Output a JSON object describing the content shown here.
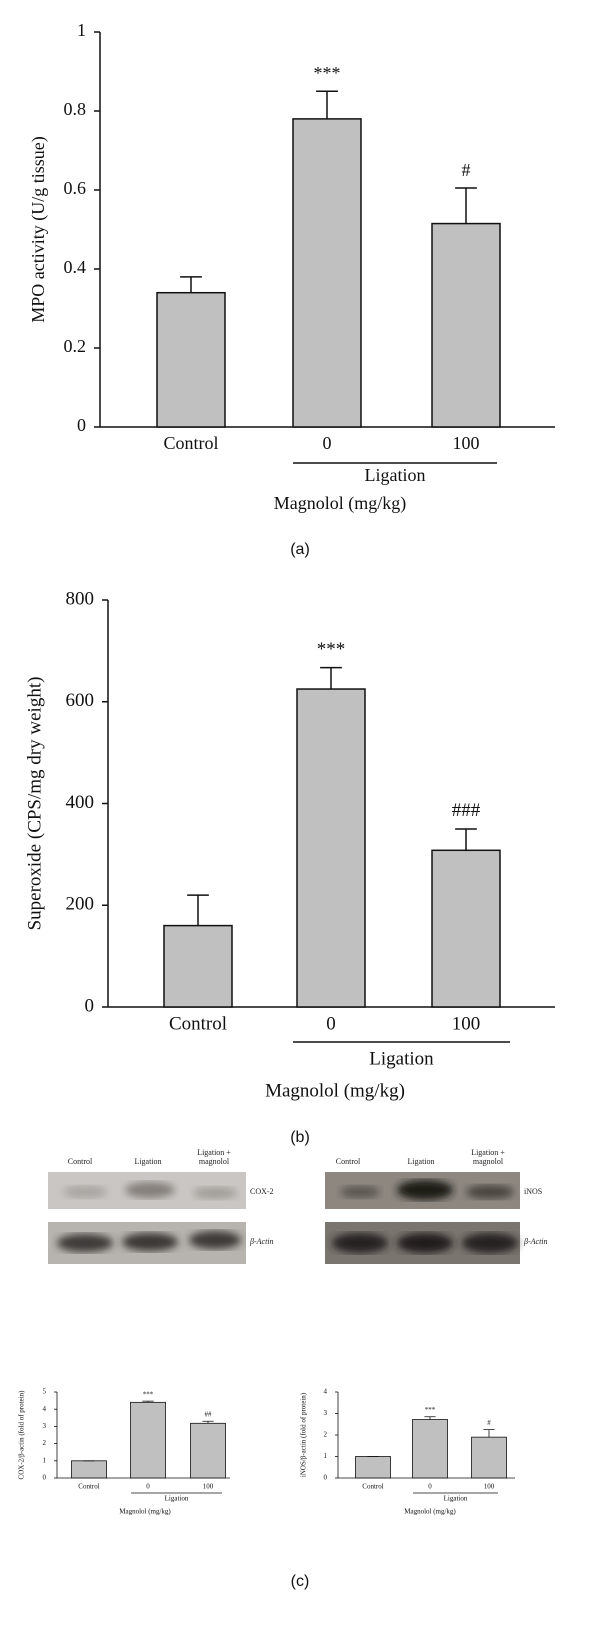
{
  "chart_data": [
    {
      "type": "bar",
      "panel_label": "(a)",
      "ylabel": "MPO activity (U/g tissue)",
      "xlabel": "Magnolol (mg/kg)",
      "group_label": "Ligation",
      "categories": [
        "Control",
        "0",
        "100"
      ],
      "values": [
        0.34,
        0.78,
        0.515
      ],
      "errors": [
        0.04,
        0.07,
        0.09
      ],
      "annotations": [
        null,
        "***",
        "#"
      ],
      "color": "#c0c0c0",
      "ylim": [
        0,
        1
      ],
      "yticks": [
        0,
        0.2,
        0.4,
        0.6,
        0.8,
        1
      ]
    },
    {
      "type": "bar",
      "panel_label": "(b)",
      "ylabel": "Superoxide (CPS/mg dry weight)",
      "xlabel": "Magnolol (mg/kg)",
      "group_label": "Ligation",
      "categories": [
        "Control",
        "0",
        "100"
      ],
      "values": [
        160,
        625,
        308
      ],
      "errors": [
        60,
        42,
        42
      ],
      "annotations": [
        null,
        "***",
        "###"
      ],
      "color": "#c0c0c0",
      "ylim": [
        0,
        800
      ],
      "yticks": [
        0,
        200,
        400,
        600,
        800
      ]
    },
    {
      "type": "bar",
      "ylabel": "COX-2/β-actin (fold of protein)",
      "xlabel": "Magnolol (mg/kg)",
      "group_label": "Ligation",
      "categories": [
        "Control",
        "0",
        "100"
      ],
      "values": [
        1,
        4.4,
        3.18
      ],
      "errors": [
        0,
        0.07,
        0.12
      ],
      "annotations": [
        null,
        "***",
        "##"
      ],
      "color": "#c0c0c0",
      "ylim": [
        0,
        5
      ],
      "yticks": [
        0,
        1,
        2,
        3,
        4,
        5
      ]
    },
    {
      "type": "bar",
      "ylabel": "iNOS/β-actin (fold of protein)",
      "xlabel": "Magnolol (mg/kg)",
      "group_label": "Ligation",
      "categories": [
        "Control",
        "0",
        "100"
      ],
      "values": [
        1,
        2.72,
        1.9
      ],
      "errors": [
        0,
        0.13,
        0.35
      ],
      "annotations": [
        null,
        "***",
        "#"
      ],
      "color": "#c0c0c0",
      "ylim": [
        0,
        4
      ],
      "yticks": [
        0,
        1,
        2,
        3,
        4
      ]
    }
  ],
  "panel_c": {
    "label": "(c)",
    "blots": [
      {
        "lanes": [
          "Control",
          "Ligation",
          "Ligation + magnolol"
        ],
        "bands": [
          "COX-2",
          "β-Actin"
        ]
      },
      {
        "lanes": [
          "Control",
          "Ligation",
          "Ligation + magnolol"
        ],
        "bands": [
          "iNOS",
          "β-Actin"
        ]
      }
    ]
  }
}
